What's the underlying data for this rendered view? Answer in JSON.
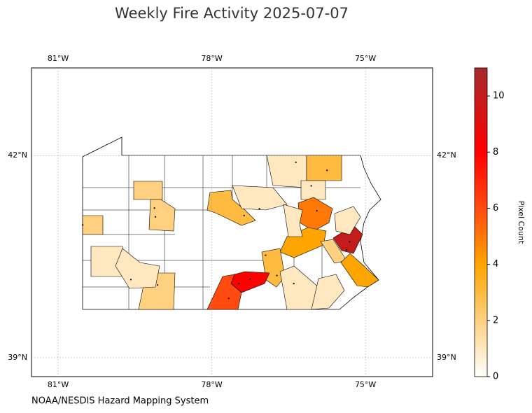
{
  "title": "Weekly Fire Activity 2025-07-07",
  "source": "NOAA/NESDIS Hazard Mapping System",
  "map": {
    "xlim": [
      -81.52,
      -73.69
    ],
    "ylim": [
      38.72,
      43.3
    ],
    "xticks": [
      {
        "value": -81,
        "label": "81°W"
      },
      {
        "value": -78,
        "label": "78°W"
      },
      {
        "value": -75,
        "label": "75°W"
      }
    ],
    "yticks": [
      {
        "value": 39,
        "label": "39°N"
      },
      {
        "value": 42,
        "label": "42°N"
      }
    ],
    "grid": true,
    "region_values": [
      2,
      2,
      2,
      3,
      1,
      1,
      3,
      1,
      5,
      4,
      3,
      10,
      2,
      4,
      8,
      6,
      2,
      1,
      1,
      1,
      1,
      1,
      1
    ],
    "fires": [
      {
        "lon": -80.52,
        "lat": 40.97
      },
      {
        "lon": -79.12,
        "lat": 41.22
      },
      {
        "lon": -79.1,
        "lat": 41.09
      },
      {
        "lon": -77.37,
        "lat": 41.11
      },
      {
        "lon": -77.07,
        "lat": 41.21
      },
      {
        "lon": -76.36,
        "lat": 41.9
      },
      {
        "lon": -75.75,
        "lat": 41.78
      },
      {
        "lon": -76.06,
        "lat": 41.55
      },
      {
        "lon": -75.95,
        "lat": 41.18
      },
      {
        "lon": -75.31,
        "lat": 40.72
      },
      {
        "lon": -75.37,
        "lat": 40.6
      },
      {
        "lon": -76.95,
        "lat": 40.52
      },
      {
        "lon": -76.73,
        "lat": 40.22
      },
      {
        "lon": -77.47,
        "lat": 40.1
      },
      {
        "lon": -77.25,
        "lat": 40.17
      },
      {
        "lon": -77.67,
        "lat": 39.88
      },
      {
        "lon": -76.4,
        "lat": 40.1
      },
      {
        "lon": -79.58,
        "lat": 40.16
      },
      {
        "lon": -79.06,
        "lat": 40.08
      }
    ]
  },
  "colorbar": {
    "label": "Pixel Count",
    "ylim": [
      0,
      11
    ],
    "yticks": [
      0,
      2,
      4,
      6,
      8,
      10
    ],
    "colormap": [
      {
        "value": 0,
        "color": "#ffffff"
      },
      {
        "value": 2,
        "color": "#fed080"
      },
      {
        "value": 4,
        "color": "#ffa500"
      },
      {
        "value": 6,
        "color": "#ff4a10"
      },
      {
        "value": 8,
        "color": "#ff0000"
      },
      {
        "value": 11,
        "color": "#a52a2a"
      }
    ]
  }
}
